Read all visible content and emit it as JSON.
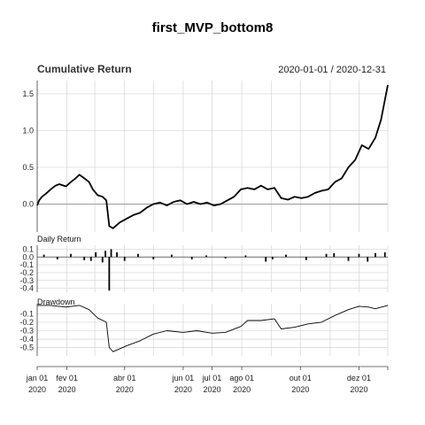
{
  "title": "first_MVP_bottom8",
  "chart_data": [
    {
      "type": "line",
      "panel": "cumulative",
      "title": "Cumulative Return",
      "date_range": "2020-01-01 / 2020-12-31",
      "ylim": [
        -0.38,
        1.68
      ],
      "yticks": [
        0.0,
        0.5,
        1.0,
        1.5
      ],
      "ytick_labels": [
        "0.0",
        "0.5",
        "1.0",
        "1.5"
      ],
      "zero_line": true,
      "series": [
        {
          "x": [
            "2020-01-01",
            "2020-01-03",
            "2020-01-06",
            "2020-01-10",
            "2020-01-15",
            "2020-01-20",
            "2020-01-24",
            "2020-01-31",
            "2020-02-05",
            "2020-02-10",
            "2020-02-14",
            "2020-02-19",
            "2020-02-24",
            "2020-02-28",
            "2020-03-04",
            "2020-03-09",
            "2020-03-13",
            "2020-03-16",
            "2020-03-20",
            "2020-03-27",
            "2020-04-03",
            "2020-04-10",
            "2020-04-17",
            "2020-04-24",
            "2020-05-01",
            "2020-05-08",
            "2020-05-15",
            "2020-05-22",
            "2020-05-29",
            "2020-06-05",
            "2020-06-12",
            "2020-06-19",
            "2020-06-26",
            "2020-07-03",
            "2020-07-10",
            "2020-07-17",
            "2020-07-24",
            "2020-07-31",
            "2020-08-07",
            "2020-08-14",
            "2020-08-21",
            "2020-08-28",
            "2020-09-04",
            "2020-09-11",
            "2020-09-18",
            "2020-09-25",
            "2020-10-02",
            "2020-10-09",
            "2020-10-16",
            "2020-10-23",
            "2020-10-30",
            "2020-11-06",
            "2020-11-13",
            "2020-11-20",
            "2020-11-27",
            "2020-12-04",
            "2020-12-11",
            "2020-12-18",
            "2020-12-24",
            "2020-12-31"
          ],
          "values": [
            -0.02,
            0.05,
            0.1,
            0.14,
            0.2,
            0.25,
            0.27,
            0.24,
            0.3,
            0.35,
            0.4,
            0.35,
            0.3,
            0.2,
            0.12,
            0.1,
            0.05,
            -0.3,
            -0.33,
            -0.25,
            -0.2,
            -0.15,
            -0.12,
            -0.05,
            0.0,
            0.02,
            -0.02,
            0.03,
            0.05,
            0.0,
            0.03,
            0.0,
            0.02,
            -0.02,
            0.0,
            0.05,
            0.1,
            0.2,
            0.22,
            0.2,
            0.25,
            0.2,
            0.22,
            0.08,
            0.06,
            0.1,
            0.08,
            0.1,
            0.15,
            0.18,
            0.2,
            0.3,
            0.35,
            0.5,
            0.6,
            0.8,
            0.75,
            0.9,
            1.15,
            1.62
          ]
        }
      ]
    },
    {
      "type": "bar",
      "panel": "daily",
      "title": "Daily Return",
      "ylim": [
        -0.45,
        0.15
      ],
      "yticks": [
        0.1,
        0.0,
        -0.1,
        -0.2,
        -0.3,
        -0.4
      ],
      "ytick_labels": [
        "0.1",
        "0.0",
        "-0.1",
        "-0.2",
        "-0.3",
        "-0.4"
      ],
      "series": [
        {
          "x": [
            "2020-01-08",
            "2020-01-22",
            "2020-02-05",
            "2020-02-19",
            "2020-02-26",
            "2020-03-02",
            "2020-03-09",
            "2020-03-12",
            "2020-03-16",
            "2020-03-18",
            "2020-03-24",
            "2020-04-01",
            "2020-04-15",
            "2020-05-01",
            "2020-05-20",
            "2020-06-10",
            "2020-06-25",
            "2020-07-15",
            "2020-08-05",
            "2020-08-26",
            "2020-09-02",
            "2020-09-16",
            "2020-10-07",
            "2020-10-28",
            "2020-11-05",
            "2020-11-20",
            "2020-12-01",
            "2020-12-10",
            "2020-12-18",
            "2020-12-28"
          ],
          "values": [
            0.03,
            -0.03,
            0.04,
            -0.04,
            -0.05,
            0.06,
            -0.07,
            0.08,
            -0.43,
            0.1,
            0.06,
            -0.05,
            0.04,
            -0.03,
            0.03,
            -0.03,
            0.02,
            -0.02,
            0.02,
            -0.06,
            -0.03,
            0.03,
            -0.04,
            0.04,
            0.05,
            -0.05,
            0.04,
            -0.06,
            0.05,
            0.06
          ]
        }
      ]
    },
    {
      "type": "line",
      "panel": "drawdown",
      "title": "Drawdown",
      "ylim": [
        -0.6,
        0.02
      ],
      "yticks": [
        -0.1,
        -0.2,
        -0.3,
        -0.4,
        -0.5
      ],
      "ytick_labels": [
        "-0.1",
        "-0.2",
        "-0.3",
        "-0.4",
        "-0.5"
      ],
      "series": [
        {
          "x": [
            "2020-01-01",
            "2020-01-15",
            "2020-01-31",
            "2020-02-14",
            "2020-02-24",
            "2020-03-04",
            "2020-03-13",
            "2020-03-16",
            "2020-03-20",
            "2020-04-03",
            "2020-04-17",
            "2020-05-01",
            "2020-05-15",
            "2020-06-01",
            "2020-06-15",
            "2020-07-01",
            "2020-07-15",
            "2020-07-31",
            "2020-08-07",
            "2020-08-21",
            "2020-09-04",
            "2020-09-11",
            "2020-09-25",
            "2020-10-09",
            "2020-10-23",
            "2020-11-06",
            "2020-11-20",
            "2020-12-01",
            "2020-12-11",
            "2020-12-18",
            "2020-12-31"
          ],
          "values": [
            0.0,
            0.0,
            -0.02,
            0.0,
            -0.05,
            -0.15,
            -0.2,
            -0.5,
            -0.55,
            -0.48,
            -0.42,
            -0.34,
            -0.3,
            -0.32,
            -0.3,
            -0.33,
            -0.32,
            -0.25,
            -0.18,
            -0.18,
            -0.16,
            -0.28,
            -0.26,
            -0.22,
            -0.2,
            -0.12,
            -0.05,
            -0.01,
            -0.02,
            -0.04,
            0.0
          ]
        }
      ]
    }
  ],
  "x_axis": {
    "xlim": [
      "2020-01-01",
      "2020-12-31"
    ],
    "ticks": [
      {
        "date": "2020-01-01",
        "label": "jan 01",
        "year": "2020"
      },
      {
        "date": "2020-02-01",
        "label": "fev 01",
        "year": "2020"
      },
      {
        "date": "2020-04-01",
        "label": "abr 01",
        "year": "2020"
      },
      {
        "date": "2020-06-01",
        "label": "jun 01",
        "year": "2020"
      },
      {
        "date": "2020-07-01",
        "label": "jul 01",
        "year": "2020"
      },
      {
        "date": "2020-08-01",
        "label": "ago 01",
        "year": "2020"
      },
      {
        "date": "2020-10-01",
        "label": "out 01",
        "year": "2020"
      },
      {
        "date": "2020-12-01",
        "label": "dez 01",
        "year": "2020"
      }
    ],
    "gridlines": [
      "2020-01-01",
      "2020-02-01",
      "2020-03-01",
      "2020-04-01",
      "2020-05-01",
      "2020-06-01",
      "2020-07-01",
      "2020-08-01",
      "2020-09-01",
      "2020-10-01",
      "2020-11-01",
      "2020-12-01",
      "2020-12-31"
    ]
  }
}
